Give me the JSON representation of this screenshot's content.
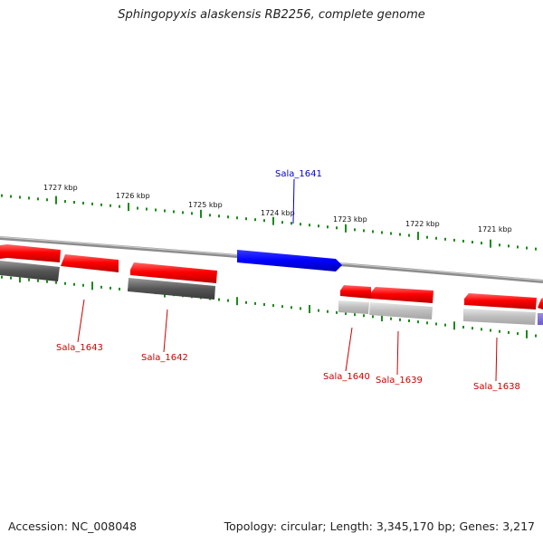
{
  "title": "Sphingopyxis alaskensis RB2256, complete genome",
  "footer": {
    "accession": "Accession: NC_008048",
    "summary": "Topology: circular; Length: 3,345,170 bp; Genes: 3,217"
  },
  "colors": {
    "forward_gene": "#ff0000",
    "reverse_gene": "#ff0000",
    "highlight_gene": "#0000ff",
    "tick": "#1a8a1a",
    "backbone": "#888888",
    "label_red": "#cc0000",
    "label_blue": "#0000cc"
  },
  "kbp_labels": [
    "1727 kbp",
    "1726 kbp",
    "1725 kbp",
    "1724 kbp",
    "1723 kbp",
    "1722 kbp",
    "1721 kbp"
  ],
  "gene_labels": [
    {
      "name": "Sala_1641",
      "color": "blue"
    },
    {
      "name": "Sala_1643",
      "color": "red"
    },
    {
      "name": "Sala_1642",
      "color": "red"
    },
    {
      "name": "Sala_1640",
      "color": "red"
    },
    {
      "name": "Sala_1639",
      "color": "red"
    },
    {
      "name": "Sala_1638",
      "color": "red"
    }
  ]
}
